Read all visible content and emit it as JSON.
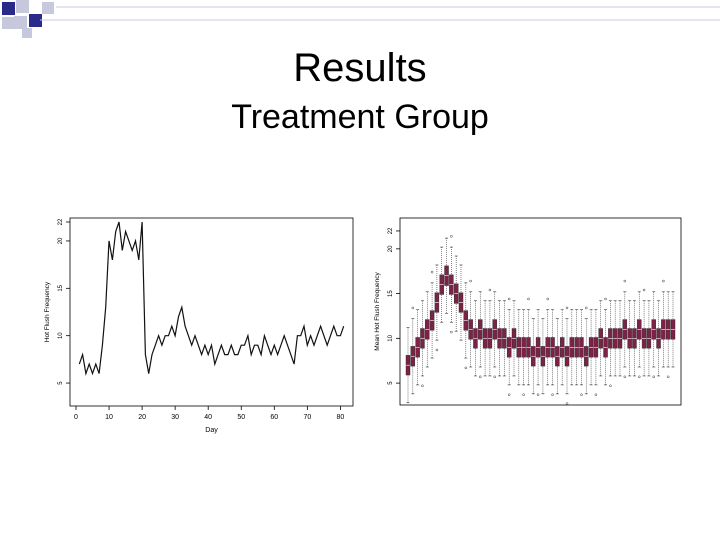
{
  "slide": {
    "title": "Results",
    "subtitle": "Treatment Group"
  },
  "colors": {
    "accent": "#2a2a8a",
    "grid_light": "#c8c8dc",
    "box_fill": "#7a2346"
  },
  "chart_data": [
    {
      "type": "line",
      "title": "",
      "xlabel": "Day",
      "ylabel": "Hot Flush Frequency",
      "xlim": [
        0,
        82
      ],
      "ylim": [
        3,
        22
      ],
      "xticks": [
        0,
        10,
        20,
        30,
        40,
        50,
        60,
        70,
        80
      ],
      "yticks": [
        5,
        10,
        15,
        20,
        22
      ],
      "x": [
        1,
        2,
        3,
        4,
        5,
        6,
        7,
        8,
        9,
        10,
        11,
        12,
        13,
        14,
        15,
        16,
        17,
        18,
        19,
        20,
        21,
        22,
        23,
        24,
        25,
        26,
        27,
        28,
        29,
        30,
        31,
        32,
        33,
        34,
        35,
        36,
        37,
        38,
        39,
        40,
        41,
        42,
        43,
        44,
        45,
        46,
        47,
        48,
        49,
        50,
        51,
        52,
        53,
        54,
        55,
        56,
        57,
        58,
        59,
        60,
        61,
        62,
        63,
        64,
        65,
        66,
        67,
        68,
        69,
        70,
        71,
        72,
        73,
        74,
        75,
        76,
        77,
        78,
        79,
        80,
        81
      ],
      "values": [
        7,
        8,
        6,
        7,
        6,
        7,
        6,
        9,
        13,
        20,
        18,
        21,
        22,
        19,
        21,
        20,
        19,
        20,
        18,
        22,
        8,
        6,
        8,
        9,
        10,
        9,
        10,
        10,
        11,
        10,
        12,
        13,
        11,
        10,
        9,
        10,
        9,
        8,
        9,
        8,
        9,
        7,
        8,
        9,
        8,
        8,
        9,
        8,
        8,
        9,
        9,
        10,
        8,
        9,
        9,
        8,
        10,
        9,
        8,
        9,
        8,
        9,
        10,
        9,
        8,
        7,
        10,
        10,
        11,
        9,
        10,
        9,
        10,
        11,
        10,
        9,
        10,
        11,
        10,
        10,
        11
      ]
    },
    {
      "type": "box",
      "title": "",
      "xlabel": "",
      "ylabel": "Mean Hot Flush Frequency",
      "ylim": [
        3,
        23
      ],
      "yticks": [
        5,
        10,
        15,
        20,
        22
      ],
      "medians": [
        7,
        8,
        9,
        10,
        11,
        12,
        14,
        16,
        17,
        16,
        15,
        14,
        12,
        11,
        10,
        11,
        10,
        10,
        11,
        10,
        10,
        9,
        10,
        9,
        9,
        9,
        8,
        9,
        8,
        9,
        9,
        8,
        9,
        8,
        9,
        9,
        9,
        8,
        9,
        9,
        10,
        9,
        10,
        10,
        10,
        11,
        10,
        10,
        11,
        10,
        10,
        11,
        10,
        11,
        11,
        11
      ]
    }
  ]
}
